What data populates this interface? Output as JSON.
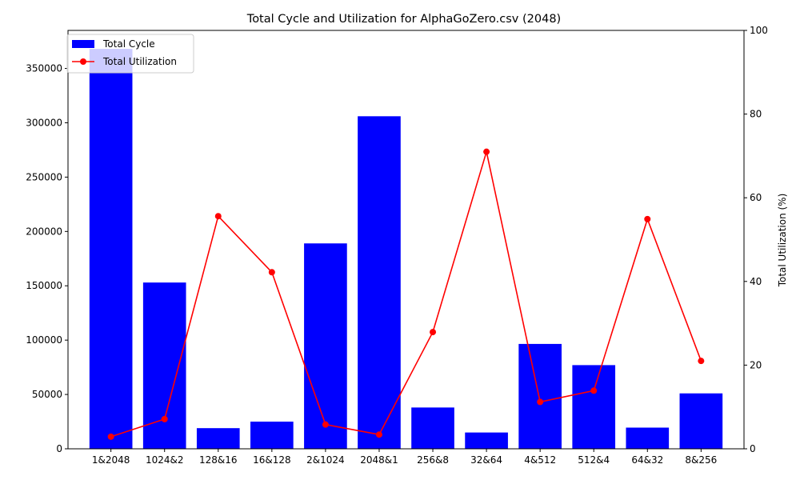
{
  "chart_data": {
    "type": "bar+line",
    "title": "Total Cycle and Utilization for AlphaGoZero.csv (2048)",
    "xlabel": "",
    "ylabel_left": "",
    "ylabel_right": "Total Utilization (%)",
    "categories": [
      "1&2048",
      "1024&2",
      "128&16",
      "16&128",
      "2&1024",
      "2048&1",
      "256&8",
      "32&64",
      "4&512",
      "512&4",
      "64&32",
      "8&256"
    ],
    "series": [
      {
        "name": "Total Cycle",
        "kind": "bar",
        "axis": "left",
        "color": "#0000ff",
        "values": [
          368000,
          153000,
          19000,
          25000,
          189000,
          306000,
          38000,
          15000,
          96500,
          77000,
          19500,
          51000
        ]
      },
      {
        "name": "Total Utilization",
        "kind": "line",
        "axis": "right",
        "color": "#ff0000",
        "values": [
          2.9,
          7.1,
          55.6,
          42.2,
          5.8,
          3.4,
          27.9,
          71.0,
          11.2,
          13.9,
          54.9,
          21.0
        ]
      }
    ],
    "ylim_left": [
      0,
      385000
    ],
    "yticks_left": [
      0,
      50000,
      100000,
      150000,
      200000,
      250000,
      300000,
      350000
    ],
    "ylim_right": [
      0,
      100
    ],
    "yticks_right": [
      0,
      20,
      40,
      60,
      80,
      100
    ],
    "legend": "top-left",
    "grid": false
  }
}
